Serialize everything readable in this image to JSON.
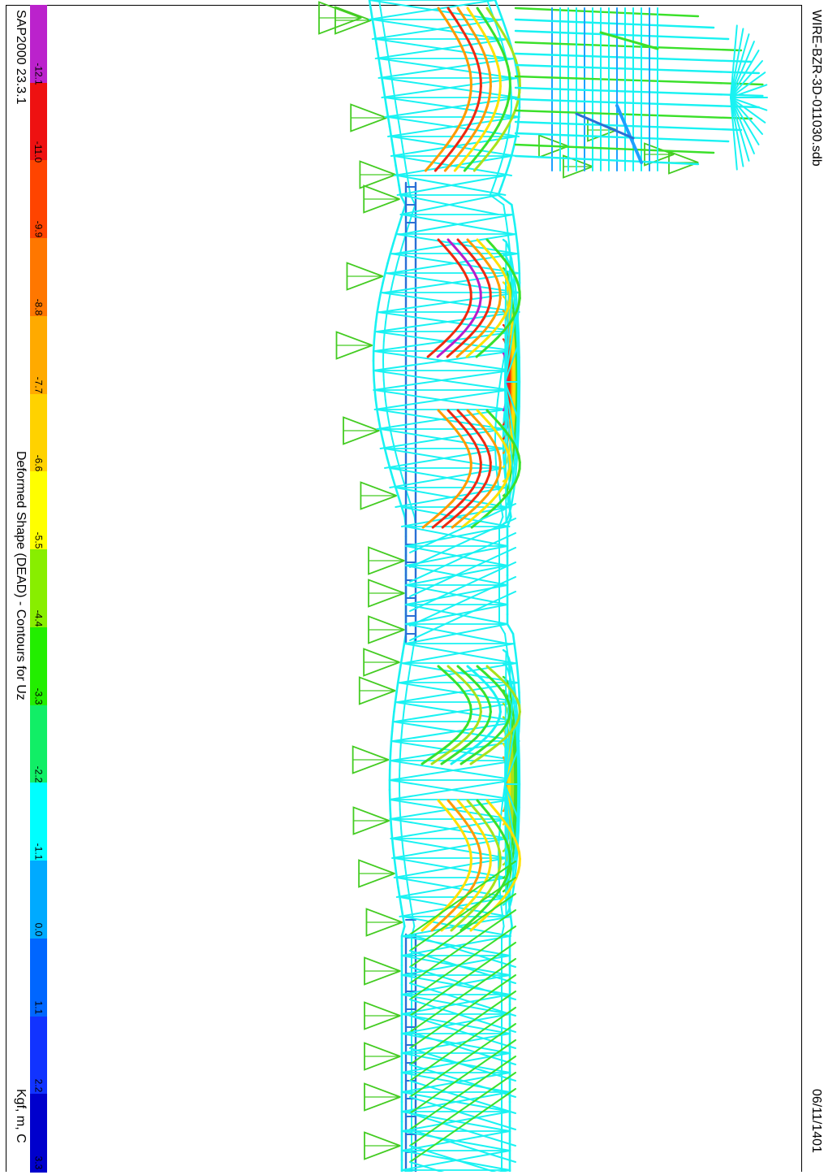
{
  "footer": {
    "app_version": "SAP2000 23.3.1",
    "plot_title": "Deformed Shape (DEAD) - Contours for Uz",
    "units": "Kgf, m, C"
  },
  "header": {
    "file_name": "WIRE-BZR-3D-011030.sdb",
    "date": "06/11/1401"
  },
  "legend": {
    "labels": [
      "-12.1",
      "-11.0",
      "-9.9",
      "-8.8",
      "-7.7",
      "-6.6",
      "-5.5",
      "-4.4",
      "-3.3",
      "-2.2",
      "-1.1",
      "0.0",
      "1.1",
      "2.2",
      "3.3"
    ],
    "colors": [
      "#bb22cc",
      "#ee1111",
      "#ff4400",
      "#ff7700",
      "#ffaa00",
      "#ffd200",
      "#ffff00",
      "#88ee00",
      "#22ee00",
      "#11ee66",
      "#00ffff",
      "#00aaff",
      "#0066ff",
      "#1133ff",
      "#0000cc"
    ]
  },
  "model_colors": {
    "cyan": "#19f2f2",
    "light_blue": "#1da0ff",
    "blue": "#2a6fd6",
    "green": "#3be02a",
    "yellow_green": "#a8e21a",
    "yellow": "#ffe000",
    "orange": "#ff9a00",
    "red": "#ee2a10",
    "magenta": "#b81ec8",
    "support": "#44cc22"
  }
}
